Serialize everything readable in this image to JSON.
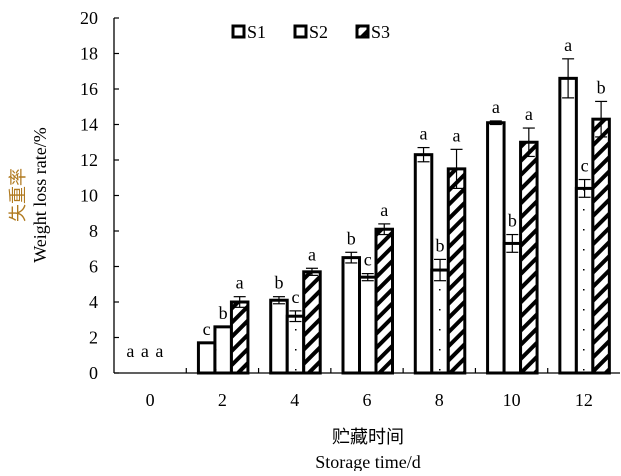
{
  "chart_data": {
    "type": "bar",
    "title": "",
    "xlabel_cn": "贮藏时间",
    "xlabel": "Storage time/d",
    "ylabel_cn": "失重率",
    "ylabel": "Weight loss rate/%",
    "ylim": [
      0,
      20
    ],
    "yticks": [
      0,
      2,
      4,
      6,
      8,
      10,
      12,
      14,
      16,
      18,
      20
    ],
    "categories": [
      "0",
      "2",
      "4",
      "6",
      "8",
      "10",
      "12"
    ],
    "legend_position": "top",
    "grid": false,
    "series": [
      {
        "name": "S1",
        "pattern": "open",
        "values": [
          0,
          1.7,
          4.1,
          6.5,
          12.3,
          14.1,
          16.6
        ],
        "errors": [
          0,
          0,
          0.2,
          0.3,
          0.4,
          0.1,
          1.1
        ],
        "letters": [
          "a",
          "c",
          "b",
          "b",
          "a",
          "a",
          "a"
        ]
      },
      {
        "name": "S2",
        "pattern": "dotted",
        "values": [
          0,
          2.6,
          3.2,
          5.4,
          5.8,
          7.3,
          10.4
        ],
        "errors": [
          0,
          0,
          0.3,
          0.2,
          0.6,
          0.5,
          0.5
        ],
        "letters": [
          "a",
          "b",
          "c",
          "c",
          "b",
          "b",
          "c"
        ]
      },
      {
        "name": "S3",
        "pattern": "diagonal-hatch",
        "values": [
          0,
          4.0,
          5.7,
          8.1,
          11.5,
          13.0,
          14.3
        ],
        "errors": [
          0,
          0.3,
          0.2,
          0.3,
          1.1,
          0.8,
          1.0
        ],
        "letters": [
          "a",
          "a",
          "a",
          "a",
          "a",
          "a",
          "b"
        ]
      }
    ]
  }
}
